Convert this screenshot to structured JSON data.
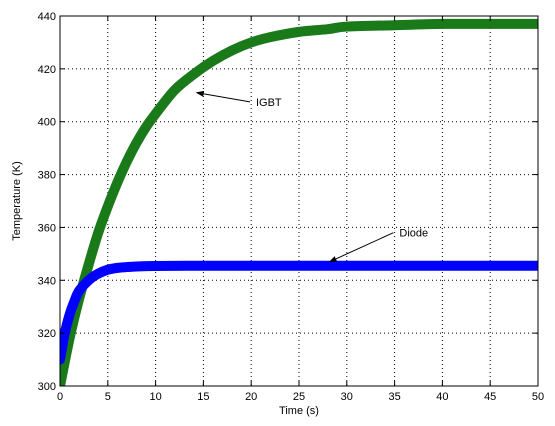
{
  "chart_data": {
    "type": "line",
    "title": "",
    "xlabel": "Time (s)",
    "ylabel": "Temperature (K)",
    "xlim": [
      0,
      50
    ],
    "ylim": [
      300,
      440
    ],
    "xticks": [
      0,
      5,
      10,
      15,
      20,
      25,
      30,
      35,
      40,
      45,
      50
    ],
    "yticks": [
      300,
      320,
      340,
      360,
      380,
      400,
      420,
      440
    ],
    "grid": true,
    "legend": "none",
    "series": [
      {
        "name": "IGBT",
        "color": "#1a7a1a",
        "x": [
          0,
          1,
          2,
          3,
          4,
          5,
          6,
          7,
          8,
          9,
          10,
          12,
          14,
          16,
          18,
          20,
          22,
          25,
          28,
          30,
          35,
          40,
          45,
          50
        ],
        "y": [
          300,
          318,
          333,
          346,
          358,
          368,
          377,
          385,
          392,
          398,
          403,
          412,
          418,
          423,
          427,
          430,
          432,
          434,
          435,
          436,
          436.5,
          437,
          437,
          437
        ]
      },
      {
        "name": "Diode",
        "color": "#0000ff",
        "x": [
          0,
          0.5,
          1,
          1.5,
          2,
          3,
          4,
          5,
          6,
          7,
          8,
          10,
          15,
          20,
          30,
          40,
          50
        ],
        "y": [
          310,
          320,
          327,
          332,
          336,
          340,
          342.5,
          344,
          344.7,
          345,
          345.2,
          345.4,
          345.5,
          345.5,
          345.5,
          345.5,
          345.5
        ]
      }
    ],
    "annotations": [
      {
        "text": "IGBT",
        "text_at": [
          20.5,
          406
        ],
        "arrow_to": [
          14.3,
          411
        ]
      },
      {
        "text": "Diode",
        "text_at": [
          35.5,
          356.5
        ],
        "arrow_to": [
          28.2,
          347
        ]
      }
    ]
  }
}
